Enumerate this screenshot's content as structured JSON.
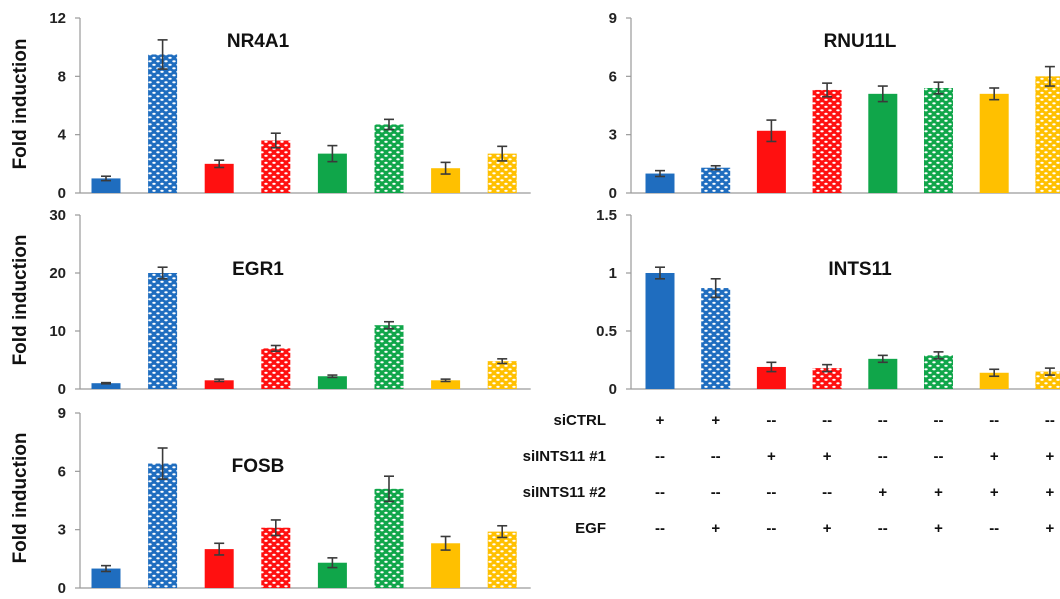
{
  "colors": {
    "blue": "#1f6dbf",
    "red": "#ff1010",
    "green": "#10a64a",
    "yellow": "#ffc000"
  },
  "bar_styles": [
    {
      "color": "blue",
      "pattern": "solid"
    },
    {
      "color": "blue",
      "pattern": "dotted"
    },
    {
      "color": "red",
      "pattern": "solid"
    },
    {
      "color": "red",
      "pattern": "dotted"
    },
    {
      "color": "green",
      "pattern": "solid"
    },
    {
      "color": "green",
      "pattern": "dotted"
    },
    {
      "color": "yellow",
      "pattern": "solid"
    },
    {
      "color": "yellow",
      "pattern": "dotted"
    }
  ],
  "chart_data": [
    {
      "type": "bar",
      "title": "NR4A1",
      "ylabel": "Fold induction",
      "ylim": [
        0,
        12
      ],
      "yticks": [
        "0",
        "4",
        "8",
        "12"
      ],
      "values": [
        1.0,
        9.5,
        2.0,
        3.6,
        2.7,
        4.7,
        1.7,
        2.7
      ],
      "errors": [
        0.15,
        1.0,
        0.25,
        0.5,
        0.55,
        0.35,
        0.4,
        0.5
      ]
    },
    {
      "type": "bar",
      "title": "EGR1",
      "ylabel": "Fold induction",
      "ylim": [
        0,
        30
      ],
      "yticks": [
        "0",
        "10",
        "20",
        "30"
      ],
      "values": [
        1.0,
        20.0,
        1.5,
        7.0,
        2.2,
        11.0,
        1.5,
        4.8
      ],
      "errors": [
        0.1,
        1.0,
        0.2,
        0.5,
        0.2,
        0.6,
        0.2,
        0.4
      ]
    },
    {
      "type": "bar",
      "title": "FOSB",
      "ylabel": "Fold induction",
      "ylim": [
        0,
        9
      ],
      "yticks": [
        "0",
        "3",
        "6",
        "9"
      ],
      "values": [
        1.0,
        6.4,
        2.0,
        3.1,
        1.3,
        5.1,
        2.3,
        2.9
      ],
      "errors": [
        0.15,
        0.8,
        0.3,
        0.4,
        0.25,
        0.65,
        0.35,
        0.3
      ]
    },
    {
      "type": "bar",
      "title": "RNU11L",
      "ylabel": "",
      "ylim": [
        0,
        9
      ],
      "yticks": [
        "0",
        "3",
        "6",
        "9"
      ],
      "values": [
        1.0,
        1.3,
        3.2,
        5.3,
        5.1,
        5.4,
        5.1,
        6.0
      ],
      "errors": [
        0.15,
        0.1,
        0.55,
        0.35,
        0.4,
        0.3,
        0.3,
        0.5
      ]
    },
    {
      "type": "bar",
      "title": "INTS11",
      "ylabel": "",
      "ylim": [
        0,
        1.5
      ],
      "yticks": [
        "0",
        "0.5",
        "1",
        "1.5"
      ],
      "values": [
        1.0,
        0.87,
        0.19,
        0.18,
        0.26,
        0.29,
        0.14,
        0.15
      ],
      "errors": [
        0.05,
        0.08,
        0.04,
        0.03,
        0.03,
        0.03,
        0.03,
        0.03
      ]
    }
  ],
  "conditions": [
    {
      "label": "siCTRL",
      "values": [
        "+",
        "+",
        "--",
        "--",
        "--",
        "--",
        "--",
        "--"
      ]
    },
    {
      "label": "siINTS11 #1",
      "values": [
        "--",
        "--",
        "+",
        "+",
        "--",
        "--",
        "+",
        "+"
      ]
    },
    {
      "label": "siINTS11 #2",
      "values": [
        "--",
        "--",
        "--",
        "--",
        "+",
        "+",
        "+",
        "+"
      ]
    },
    {
      "label": "EGF",
      "values": [
        "--",
        "+",
        "--",
        "+",
        "--",
        "+",
        "--",
        "+"
      ]
    }
  ]
}
